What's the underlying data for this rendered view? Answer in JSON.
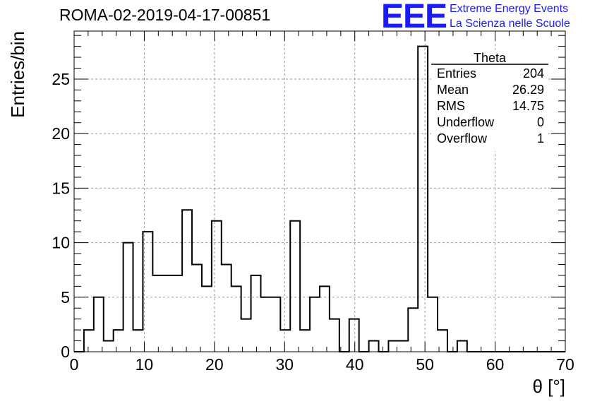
{
  "header": {
    "title": "ROMA-02-2019-04-17-00851",
    "logo": "EEE",
    "brand_line1": "Extreme Energy Events",
    "brand_line2": "La Scienza nelle Scuole"
  },
  "chart_data": {
    "type": "histogram",
    "xlabel": "θ [°]",
    "ylabel": "Entries/bin",
    "xlim": [
      0,
      70
    ],
    "ylim": [
      0,
      29.4
    ],
    "bin_width": 1.4,
    "bin_low_edges": [
      0,
      1.4,
      2.8,
      4.2,
      5.6,
      7,
      8.4,
      9.8,
      11.2,
      12.6,
      14,
      15.4,
      16.8,
      18.2,
      19.6,
      21,
      22.4,
      23.8,
      25.2,
      26.6,
      28,
      29.4,
      30.8,
      32.2,
      33.6,
      35,
      36.4,
      37.8,
      39.2,
      40.6,
      42,
      43.4,
      44.8,
      46.2,
      47.6,
      49,
      50.4,
      51.8,
      53.2,
      54.6,
      56,
      57.4,
      58.8,
      60.2,
      61.6,
      63,
      64.4,
      65.8,
      67.2,
      68.6
    ],
    "values": [
      0,
      2,
      5,
      1,
      2,
      10,
      2,
      11,
      7,
      7,
      7,
      13,
      8,
      6,
      12,
      8,
      6,
      3,
      7,
      5,
      5,
      2,
      12,
      2,
      5,
      6,
      3,
      0,
      3,
      0,
      1,
      0,
      1,
      1,
      4,
      28,
      5,
      2,
      0,
      1,
      0,
      0,
      0,
      0,
      0,
      0,
      0,
      0,
      0,
      0
    ],
    "xticks": [
      0,
      10,
      20,
      30,
      40,
      50,
      60,
      70
    ],
    "yticks": [
      0,
      5,
      10,
      15,
      20,
      25
    ],
    "grid": true,
    "stats_box": {
      "title": "Theta",
      "rows": [
        {
          "label": "Entries",
          "value": "204"
        },
        {
          "label": "Mean",
          "value": "26.29"
        },
        {
          "label": "RMS",
          "value": "14.75"
        },
        {
          "label": "Underflow",
          "value": "0"
        },
        {
          "label": "Overflow",
          "value": "1"
        }
      ]
    }
  }
}
